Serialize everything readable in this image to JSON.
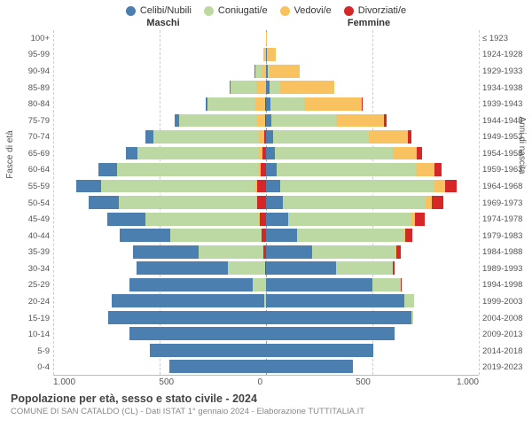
{
  "chart": {
    "type": "population-pyramid",
    "x_max": 1000,
    "x_ticks": [
      1000,
      500,
      0,
      500,
      1000
    ],
    "x_ticks_fmt": [
      "1.000",
      "500",
      "0",
      "500",
      "1.000"
    ],
    "grid_color": "#cccccc",
    "center_axis_color": "#999999",
    "background_color": "#ffffff",
    "bar_gap_pct": 20,
    "legend": [
      {
        "label": "Celibi/Nubili",
        "color": "#4a7fb0"
      },
      {
        "label": "Coniugati/e",
        "color": "#bcd9a4"
      },
      {
        "label": "Vedovi/e",
        "color": "#f8c260"
      },
      {
        "label": "Divorziati/e",
        "color": "#d62728"
      }
    ],
    "headers": {
      "left": "Maschi",
      "right": "Femmine"
    },
    "y_axis_left_title": "Fasce di età",
    "y_axis_right_title": "Anni di nascita",
    "age_labels": [
      "100+",
      "95-99",
      "90-94",
      "85-89",
      "80-84",
      "75-79",
      "70-74",
      "65-69",
      "60-64",
      "55-59",
      "50-54",
      "45-49",
      "40-44",
      "35-39",
      "30-34",
      "25-29",
      "20-24",
      "15-19",
      "10-14",
      "5-9",
      "0-4"
    ],
    "birth_labels": [
      "≤ 1923",
      "1924-1928",
      "1929-1933",
      "1934-1938",
      "1939-1943",
      "1944-1948",
      "1949-1953",
      "1954-1958",
      "1959-1963",
      "1964-1968",
      "1969-1973",
      "1974-1978",
      "1979-1983",
      "1984-1988",
      "1989-1993",
      "1994-1998",
      "1999-2003",
      "2004-2008",
      "2009-2013",
      "2014-2018",
      "2019-2023"
    ],
    "rows": [
      {
        "age": "100+",
        "m": {
          "single": 0,
          "married": 0,
          "widowed": 0,
          "divorced": 0
        },
        "f": {
          "single": 0,
          "married": 0,
          "widowed": 5,
          "divorced": 0
        }
      },
      {
        "age": "95-99",
        "m": {
          "single": 0,
          "married": 3,
          "widowed": 8,
          "divorced": 0
        },
        "f": {
          "single": 3,
          "married": 3,
          "widowed": 40,
          "divorced": 0
        }
      },
      {
        "age": "90-94",
        "m": {
          "single": 3,
          "married": 30,
          "widowed": 22,
          "divorced": 0
        },
        "f": {
          "single": 8,
          "married": 10,
          "widowed": 140,
          "divorced": 0
        }
      },
      {
        "age": "85-89",
        "m": {
          "single": 8,
          "married": 120,
          "widowed": 45,
          "divorced": 0
        },
        "f": {
          "single": 15,
          "married": 50,
          "widowed": 255,
          "divorced": 0
        }
      },
      {
        "age": "80-84",
        "m": {
          "single": 12,
          "married": 225,
          "widowed": 45,
          "divorced": 3
        },
        "f": {
          "single": 20,
          "married": 160,
          "widowed": 270,
          "divorced": 5
        }
      },
      {
        "age": "75-79",
        "m": {
          "single": 20,
          "married": 370,
          "widowed": 35,
          "divorced": 5
        },
        "f": {
          "single": 25,
          "married": 305,
          "widowed": 225,
          "divorced": 10
        }
      },
      {
        "age": "70-74",
        "m": {
          "single": 35,
          "married": 495,
          "widowed": 25,
          "divorced": 10
        },
        "f": {
          "single": 35,
          "married": 450,
          "widowed": 180,
          "divorced": 18
        }
      },
      {
        "age": "65-69",
        "m": {
          "single": 55,
          "married": 570,
          "widowed": 18,
          "divorced": 15
        },
        "f": {
          "single": 40,
          "married": 555,
          "widowed": 115,
          "divorced": 25
        }
      },
      {
        "age": "60-64",
        "m": {
          "single": 85,
          "married": 665,
          "widowed": 12,
          "divorced": 25
        },
        "f": {
          "single": 50,
          "married": 660,
          "widowed": 80,
          "divorced": 35
        }
      },
      {
        "age": "55-59",
        "m": {
          "single": 115,
          "married": 725,
          "widowed": 10,
          "divorced": 40
        },
        "f": {
          "single": 65,
          "married": 725,
          "widowed": 50,
          "divorced": 55
        }
      },
      {
        "age": "50-54",
        "m": {
          "single": 145,
          "married": 645,
          "widowed": 5,
          "divorced": 40
        },
        "f": {
          "single": 80,
          "married": 670,
          "widowed": 30,
          "divorced": 55
        }
      },
      {
        "age": "45-49",
        "m": {
          "single": 180,
          "married": 535,
          "widowed": 3,
          "divorced": 30
        },
        "f": {
          "single": 105,
          "married": 580,
          "widowed": 15,
          "divorced": 45
        }
      },
      {
        "age": "40-44",
        "m": {
          "single": 235,
          "married": 430,
          "widowed": 2,
          "divorced": 20
        },
        "f": {
          "single": 145,
          "married": 500,
          "widowed": 8,
          "divorced": 35
        }
      },
      {
        "age": "35-39",
        "m": {
          "single": 310,
          "married": 305,
          "widowed": 0,
          "divorced": 12
        },
        "f": {
          "single": 215,
          "married": 395,
          "widowed": 3,
          "divorced": 22
        }
      },
      {
        "age": "30-34",
        "m": {
          "single": 430,
          "married": 175,
          "widowed": 0,
          "divorced": 5
        },
        "f": {
          "single": 330,
          "married": 265,
          "widowed": 0,
          "divorced": 10
        }
      },
      {
        "age": "25-29",
        "m": {
          "single": 580,
          "married": 60,
          "widowed": 0,
          "divorced": 2
        },
        "f": {
          "single": 500,
          "married": 135,
          "widowed": 0,
          "divorced": 3
        }
      },
      {
        "age": "20-24",
        "m": {
          "single": 715,
          "married": 10,
          "widowed": 0,
          "divorced": 0
        },
        "f": {
          "single": 650,
          "married": 45,
          "widowed": 0,
          "divorced": 0
        }
      },
      {
        "age": "15-19",
        "m": {
          "single": 740,
          "married": 0,
          "widowed": 0,
          "divorced": 0
        },
        "f": {
          "single": 685,
          "married": 5,
          "widowed": 0,
          "divorced": 0
        }
      },
      {
        "age": "10-14",
        "m": {
          "single": 640,
          "married": 0,
          "widowed": 0,
          "divorced": 0
        },
        "f": {
          "single": 605,
          "married": 0,
          "widowed": 0,
          "divorced": 0
        }
      },
      {
        "age": "5-9",
        "m": {
          "single": 545,
          "married": 0,
          "widowed": 0,
          "divorced": 0
        },
        "f": {
          "single": 505,
          "married": 0,
          "widowed": 0,
          "divorced": 0
        }
      },
      {
        "age": "0-4",
        "m": {
          "single": 455,
          "married": 0,
          "widowed": 0,
          "divorced": 0
        },
        "f": {
          "single": 410,
          "married": 0,
          "widowed": 0,
          "divorced": 0
        }
      }
    ],
    "footer": {
      "title": "Popolazione per età, sesso e stato civile - 2024",
      "subtitle": "COMUNE DI SAN CATALDO (CL) - Dati ISTAT 1° gennaio 2024 - Elaborazione TUTTITALIA.IT"
    }
  }
}
